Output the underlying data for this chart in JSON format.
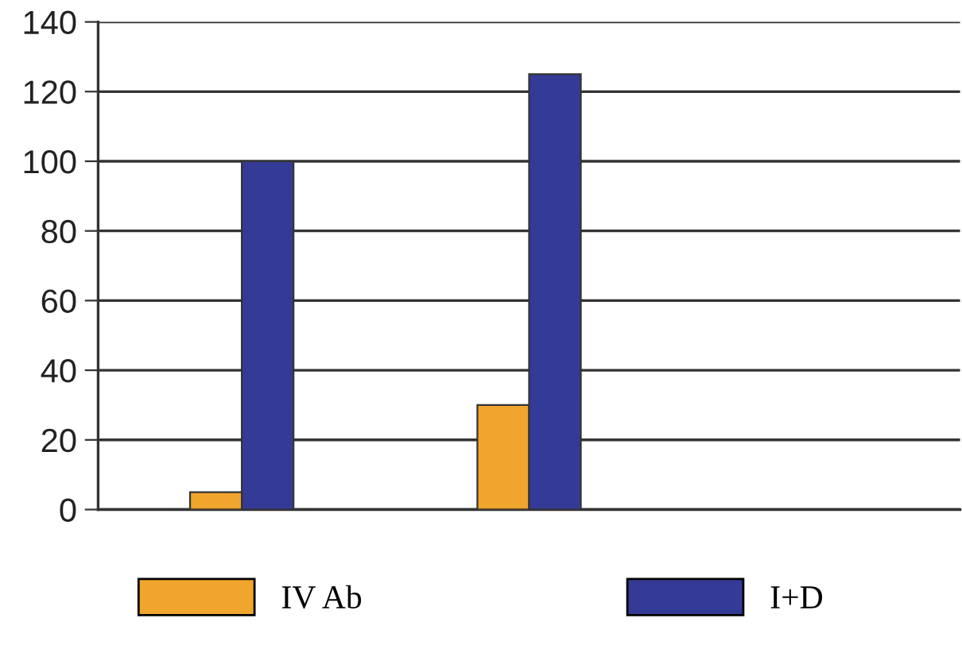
{
  "chart_data": {
    "type": "bar",
    "categories": [
      null,
      null,
      null
    ],
    "series": [
      {
        "name": "IV Ab",
        "color": "#f0a52c",
        "values": [
          5,
          30,
          null
        ]
      },
      {
        "name": "I+D",
        "color": "#343b96",
        "values": [
          100,
          125,
          null
        ]
      }
    ],
    "ylim": [
      0,
      140
    ],
    "yticks": [
      0,
      20,
      40,
      60,
      80,
      100,
      120,
      140
    ],
    "grid": "y",
    "legend": "bottom"
  }
}
